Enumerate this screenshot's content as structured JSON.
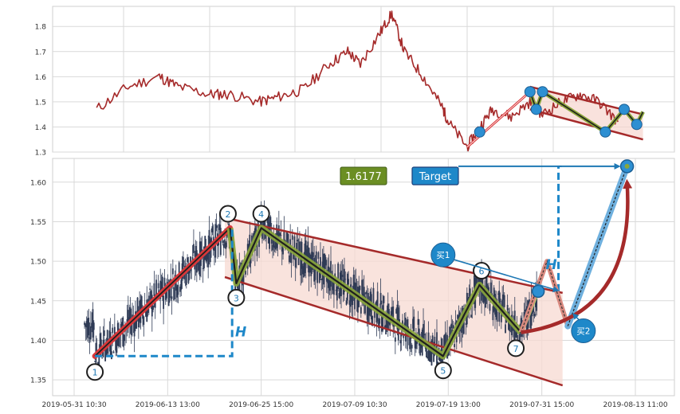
{
  "chart_data": [
    {
      "type": "line",
      "panel": "overview",
      "ylim": [
        1.3,
        1.88
      ],
      "yticks": [
        "1.3",
        "1.4",
        "1.5",
        "1.6",
        "1.7",
        "1.8"
      ],
      "ytick_values": [
        1.3,
        1.4,
        1.5,
        1.6,
        1.7,
        1.8
      ],
      "grid": true,
      "series_color": "#a52a2a",
      "x_time": [
        "2019-05-24",
        "2019-05-29",
        "2019-06-03",
        "2019-06-06",
        "2019-06-11",
        "2019-06-14",
        "2019-06-19",
        "2019-06-22",
        "2019-06-26",
        "2019-06-30",
        "2019-07-03",
        "2019-07-05",
        "2019-07-08",
        "2019-07-10",
        "2019-07-12",
        "2019-07-15",
        "2019-07-18",
        "2019-07-19",
        "2019-07-22",
        "2019-07-24",
        "2019-07-26",
        "2019-07-29",
        "2019-08-01",
        "2019-08-03",
        "2019-08-06",
        "2019-08-09",
        "2019-08-12",
        "2019-08-15"
      ],
      "values": [
        1.47,
        1.56,
        1.6,
        1.56,
        1.53,
        1.53,
        1.5,
        1.52,
        1.55,
        1.65,
        1.7,
        1.65,
        1.77,
        1.85,
        1.7,
        1.6,
        1.48,
        1.42,
        1.32,
        1.4,
        1.47,
        1.44,
        1.5,
        1.45,
        1.5,
        1.53,
        1.5,
        1.42
      ],
      "markers": [
        {
          "t": "2019-07-24",
          "v": 1.38
        },
        {
          "t": "2019-08-01",
          "v": 1.54
        },
        {
          "t": "2019-08-02",
          "v": 1.47
        },
        {
          "t": "2019-08-03",
          "v": 1.54
        },
        {
          "t": "2019-08-13",
          "v": 1.38
        },
        {
          "t": "2019-08-16",
          "v": 1.47
        },
        {
          "t": "2019-08-18",
          "v": 1.41
        }
      ],
      "channel_upper": [
        {
          "t": "2019-08-01",
          "v": 1.56
        },
        {
          "t": "2019-08-19",
          "v": 1.45
        }
      ],
      "channel_lower": [
        {
          "t": "2019-08-01",
          "v": 1.47
        },
        {
          "t": "2019-08-19",
          "v": 1.35
        }
      ],
      "zigzag": [
        {
          "t": "2019-07-22",
          "v": 1.32
        },
        {
          "t": "2019-08-01",
          "v": 1.54
        },
        {
          "t": "2019-08-02",
          "v": 1.47
        },
        {
          "t": "2019-08-03",
          "v": 1.54
        },
        {
          "t": "2019-08-13",
          "v": 1.38
        },
        {
          "t": "2019-08-16",
          "v": 1.47
        },
        {
          "t": "2019-08-18",
          "v": 1.41
        },
        {
          "t": "2019-08-19",
          "v": 1.46
        }
      ]
    },
    {
      "type": "candlestick",
      "panel": "pattern",
      "ylim": [
        1.33,
        1.63
      ],
      "yticks": [
        "1.35",
        "1.40",
        "1.45",
        "1.50",
        "1.55",
        "1.60"
      ],
      "ytick_values": [
        1.35,
        1.4,
        1.45,
        1.5,
        1.55,
        1.6
      ],
      "xticks": [
        "2019-05-31 10:30",
        "2019-06-13 13:00",
        "2019-06-25 15:00",
        "2019-07-09 10:30",
        "2019-07-19 13:00",
        "2019-07-31 15:00",
        "2019-08-13 11:00"
      ],
      "xtick_positions": [
        0,
        90,
        180,
        270,
        360,
        450,
        540
      ],
      "xlim": [
        -20,
        580
      ],
      "grid": true,
      "price_range": {
        "start": 10,
        "end": 470,
        "low": 1.385,
        "high": 1.6,
        "mid": 1.46
      },
      "pivots": [
        {
          "label": "1",
          "x": 20,
          "y": 1.38,
          "lx": 20,
          "ly": 1.36
        },
        {
          "label": "2",
          "x": 150,
          "y": 1.542,
          "lx": 148,
          "ly": 1.56
        },
        {
          "label": "3",
          "x": 156,
          "y": 1.472,
          "lx": 156,
          "ly": 1.454
        },
        {
          "label": "4",
          "x": 180,
          "y": 1.542,
          "lx": 180,
          "ly": 1.56
        },
        {
          "label": "5",
          "x": 355,
          "y": 1.38,
          "lx": 355,
          "ly": 1.362
        },
        {
          "label": "6",
          "x": 390,
          "y": 1.47,
          "lx": 392,
          "ly": 1.488
        },
        {
          "label": "7",
          "x": 430,
          "y": 1.41,
          "lx": 425,
          "ly": 1.39
        }
      ],
      "impulse": [
        {
          "x": 20,
          "y": 1.38
        },
        {
          "x": 150,
          "y": 1.542
        }
      ],
      "zigzag": [
        {
          "x": 150,
          "y": 1.542
        },
        {
          "x": 156,
          "y": 1.472
        },
        {
          "x": 180,
          "y": 1.542
        },
        {
          "x": 355,
          "y": 1.38
        },
        {
          "x": 390,
          "y": 1.47
        },
        {
          "x": 430,
          "y": 1.41
        },
        {
          "x": 445,
          "y": 1.46
        }
      ],
      "channel_upper": [
        {
          "x": 145,
          "y": 1.555
        },
        {
          "x": 470,
          "y": 1.46
        }
      ],
      "channel_lower": [
        {
          "x": 145,
          "y": 1.48
        },
        {
          "x": 470,
          "y": 1.343
        }
      ],
      "h_left": {
        "x0": 20,
        "x1": 152,
        "y0": 1.38,
        "y1": 1.54
      },
      "h_right": {
        "x": 466,
        "y0": 1.462,
        "y1": 1.62
      },
      "target_line": {
        "x0": 340,
        "x1": 532,
        "y": 1.62
      },
      "projection": [
        {
          "x": 430,
          "y": 1.41
        },
        {
          "x": 455,
          "y": 1.5
        },
        {
          "x": 475,
          "y": 1.418
        },
        {
          "x": 532,
          "y": 1.62
        }
      ],
      "breakout_arc": [
        {
          "x": 430,
          "y": 1.41
        },
        {
          "x": 510,
          "y": 1.44
        },
        {
          "x": 532,
          "y": 1.6
        }
      ],
      "buy_points": [
        {
          "label": "买1",
          "x": 355,
          "y": 1.508,
          "tx": 470,
          "ty": 1.46
        },
        {
          "label": "买2",
          "x": 490,
          "y": 1.412,
          "tx": 485,
          "ty": 1.43
        }
      ],
      "target_point": {
        "x": 532,
        "y": 1.62
      },
      "labels": {
        "price_box": "1.6177",
        "target": "Target",
        "h": "H"
      },
      "colors": {
        "candle": "#2e3a55",
        "impulse": "#c0392b",
        "zigzag": "#6b8e23",
        "channel": "#a52a2a",
        "dash": "#1e88c9",
        "target_box": "#1e88c9",
        "price_box": "#6b8e23"
      }
    }
  ]
}
